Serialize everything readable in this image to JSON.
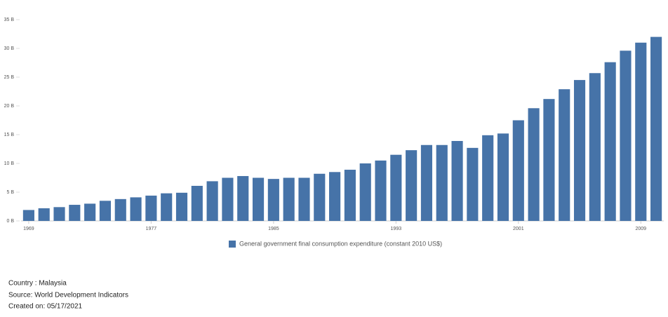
{
  "chart_data": {
    "type": "bar",
    "categories": [
      "1969",
      null,
      null,
      null,
      null,
      null,
      null,
      null,
      "1977",
      null,
      null,
      null,
      null,
      null,
      null,
      null,
      "1985",
      null,
      null,
      null,
      null,
      null,
      null,
      null,
      "1993",
      null,
      null,
      null,
      null,
      null,
      null,
      null,
      "2001",
      null,
      null,
      null,
      null,
      null,
      null,
      null,
      "2009",
      null
    ],
    "series": [
      {
        "name": "General government final consumption expenditure (constant 2010 US$)",
        "color": "#4673a8",
        "values": [
          1.9,
          2.2,
          2.4,
          2.8,
          3.0,
          3.5,
          3.8,
          4.1,
          4.4,
          4.8,
          4.9,
          6.1,
          6.9,
          7.5,
          7.8,
          7.5,
          7.3,
          7.5,
          7.5,
          8.2,
          8.5,
          8.9,
          10.0,
          10.5,
          11.5,
          12.3,
          13.2,
          13.2,
          13.9,
          12.7,
          14.9,
          15.2,
          17.5,
          19.6,
          21.2,
          22.9,
          24.5,
          25.7,
          27.6,
          29.6,
          31.0,
          32.0
        ]
      }
    ],
    "ylim": [
      0,
      35
    ],
    "yticks": [
      {
        "value": 0,
        "label": "0 B"
      },
      {
        "value": 5,
        "label": "5 B"
      },
      {
        "value": 10,
        "label": "10 B"
      },
      {
        "value": 15,
        "label": "15 B"
      },
      {
        "value": 20,
        "label": "20 B"
      },
      {
        "value": 25,
        "label": "25 B"
      },
      {
        "value": 30,
        "label": "30 B"
      },
      {
        "value": 35,
        "label": "35 B"
      }
    ],
    "legend": "bottom"
  },
  "footer": {
    "country": "Country : Malaysia",
    "source": "Source: World Development Indicators",
    "created": "Created on: 05/17/2021"
  }
}
